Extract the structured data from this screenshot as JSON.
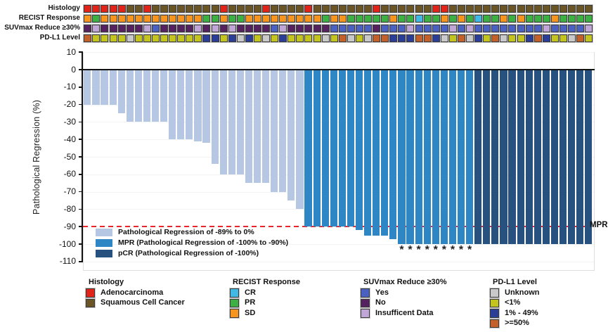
{
  "annotation_rows": [
    {
      "id": "histology",
      "label": "Histology",
      "track": [
        "AAAAASSASS",
        "SSSSSSASSS",
        "SASSSSASSS",
        "SSSSASSSSS",
        "SAASSSSSSS",
        "SSSSSSSSSS"
      ],
      "palette": {
        "A": "#e2231a",
        "S": "#6b5524"
      }
    },
    {
      "id": "recist",
      "label": "RECIST Response",
      "track": [
        "DPDDDDDDDD",
        "DDDDPPDPPD",
        "DDDDDDDDPD",
        "DPPPPPDPPC",
        "PPDPDPCPPD",
        "PDPPPDPPPP"
      ],
      "palette": {
        "C": "#42b9e5",
        "P": "#3cb043",
        "D": "#f7941e"
      }
    },
    {
      "id": "suvmax",
      "label": "SUVmax Reduce ≥30%",
      "track": [
        "NINNNNNIYN",
        "NNNINININN",
        "NNYINNNNNY",
        "YYYYNYYYIY",
        "YYYIYIYYYY",
        "YYYYIYYYYI"
      ],
      "palette": {
        "Y": "#4b61c1",
        "N": "#55215f",
        "I": "#c0a5d7"
      }
    },
    {
      "id": "pdl1",
      "label": "PD-L1 Level",
      "track": [
        "HLLLLULLLL",
        "LLLLMMLMUM",
        "LULMLLLLUL",
        "HULUHHMMMH",
        "HMULHUMLHU",
        "LLMHMLLUHL"
      ],
      "palette": {
        "U": "#c9c9c9",
        "L": "#c3c41d",
        "M": "#2b3e97",
        "H": "#c4612a"
      }
    }
  ],
  "chart_data": {
    "type": "bar",
    "title": "",
    "xlabel": "",
    "ylabel": "Pathological Regression (%)",
    "ylim": [
      -110,
      10
    ],
    "yticks": [
      10,
      0,
      -10,
      -20,
      -30,
      -40,
      -50,
      -60,
      -70,
      -80,
      -90,
      -100,
      -110
    ],
    "n_patients": 60,
    "values": [
      -20,
      -20,
      -20,
      -20,
      -25,
      -30,
      -30,
      -30,
      -30,
      -30,
      -40,
      -40,
      -40,
      -41,
      -42,
      -54,
      -60,
      -60,
      -60,
      -65,
      -65,
      -65,
      -70,
      -70,
      -75,
      -80,
      -90,
      -90,
      -90,
      -90,
      -90,
      -90,
      -92,
      -95,
      -95,
      -95,
      -97,
      -100,
      -100,
      -100,
      -100,
      -100,
      -100,
      -100,
      -100,
      -100,
      -100,
      -100,
      -100,
      -100,
      -100,
      -100,
      -100,
      -100,
      -100,
      -100,
      -100,
      -100,
      -100,
      -100
    ],
    "groups": [
      "RRRRRRRRRR",
      "RRRRRRRRRR",
      "RRRRRRMMMM",
      "MMMMMMMMMM",
      "MMMMMMPPPP",
      "PPPPPPPPPP"
    ],
    "asterisk_indices": [
      37,
      38,
      39,
      40,
      41,
      42,
      43,
      44,
      45
    ],
    "asterisk_symbol": "*",
    "reference_line": {
      "value": -90,
      "label": "MPR",
      "color": "#e8262b"
    },
    "series": [
      {
        "code": "R",
        "label": "Pathological Regression of -89% to 0%",
        "color": "#b5c7e3"
      },
      {
        "code": "M",
        "label": "MPR (Pathological Regression of -100% to -90%)",
        "color": "#2e86c4"
      },
      {
        "code": "P",
        "label": "pCR (Pathological Regression of -100%)",
        "color": "#27517e"
      }
    ],
    "legend_position": "lower-left-inside",
    "grid": "faint-horizontal"
  },
  "bottom_legends": [
    {
      "title": "Histology",
      "items": [
        {
          "label": "Adenocarcinoma",
          "color": "#e2231a"
        },
        {
          "label": "Squamous Cell Cancer",
          "color": "#6b5524"
        }
      ]
    },
    {
      "title": "RECIST Response",
      "items": [
        {
          "label": "CR",
          "color": "#42b9e5"
        },
        {
          "label": "PR",
          "color": "#3cb043"
        },
        {
          "label": "SD",
          "color": "#f7941e"
        }
      ]
    },
    {
      "title": "SUVmax Reduce ≥30%",
      "items": [
        {
          "label": "Yes",
          "color": "#4b61c1"
        },
        {
          "label": "No",
          "color": "#55215f"
        },
        {
          "label": "Insufficent Data",
          "color": "#c0a5d7"
        }
      ]
    },
    {
      "title": "PD-L1 Level",
      "items": [
        {
          "label": "Unknown",
          "color": "#c9c9c9"
        },
        {
          "label": "<1%",
          "color": "#c3c41d"
        },
        {
          "label": "1% - 49%",
          "color": "#2b3e97"
        },
        {
          "label": ">=50%",
          "color": "#c4612a"
        }
      ]
    }
  ]
}
